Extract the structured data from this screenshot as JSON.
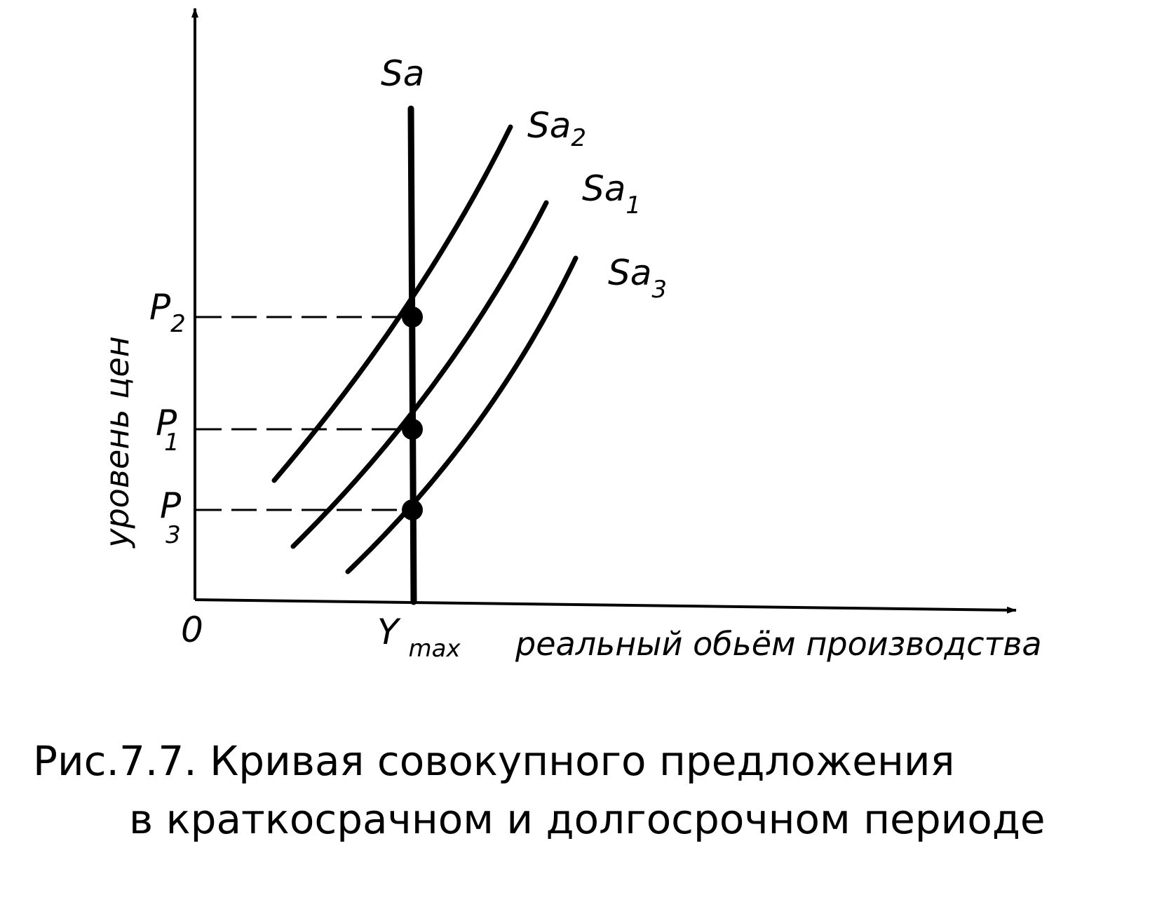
{
  "diagram": {
    "curves": {
      "long_run": {
        "main": "Sa"
      },
      "sa2": {
        "main": "Sa",
        "sub": "2"
      },
      "sa1": {
        "main": "Sa",
        "sub": "1"
      },
      "sa3": {
        "main": "Sa",
        "sub": "3"
      }
    },
    "prices": {
      "p2": {
        "main": "P",
        "sub": "2"
      },
      "p1": {
        "main": "P",
        "sub": "1"
      },
      "p3": {
        "main": "P",
        "sub": "3"
      }
    },
    "origin": "0",
    "ymax": {
      "main": "Y",
      "sub": "max"
    },
    "x_axis_label": "реальный обьём производства",
    "y_axis_label": "уровень цен"
  },
  "caption": {
    "line1": "Рис.7.7.  Кривая совокупного предложения",
    "line2": "в краткосрачном и долгосрочном периоде"
  }
}
